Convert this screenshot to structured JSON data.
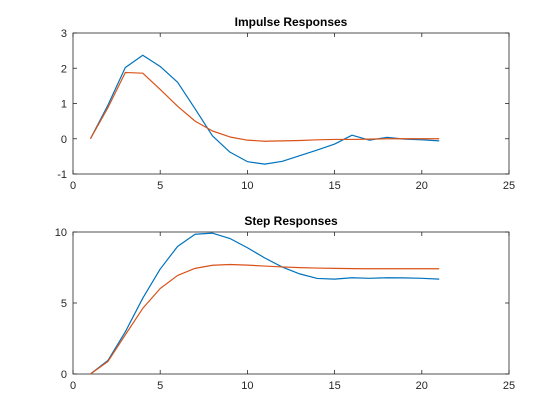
{
  "chart_data": [
    {
      "type": "line",
      "title": "Impulse Responses",
      "xlabel": "",
      "ylabel": "",
      "xlim": [
        0,
        25
      ],
      "ylim": [
        -1,
        3
      ],
      "xticks": [
        0,
        5,
        10,
        15,
        20,
        25
      ],
      "yticks": [
        -1,
        0,
        1,
        2,
        3
      ],
      "grid": false,
      "x": [
        1,
        2,
        3,
        4,
        5,
        6,
        7,
        8,
        9,
        10,
        11,
        12,
        13,
        14,
        15,
        16,
        17,
        18,
        19,
        20,
        21
      ],
      "series": [
        {
          "color": "#0072BD",
          "values": [
            0,
            0.95,
            2.02,
            2.37,
            2.05,
            1.6,
            0.85,
            0.08,
            -0.38,
            -0.65,
            -0.72,
            -0.64,
            -0.48,
            -0.32,
            -0.15,
            0.1,
            -0.04,
            0.04,
            -0.01,
            -0.03,
            -0.06
          ]
        },
        {
          "color": "#D95319",
          "values": [
            0,
            0.88,
            1.88,
            1.86,
            1.4,
            0.92,
            0.5,
            0.22,
            0.05,
            -0.04,
            -0.07,
            -0.06,
            -0.05,
            -0.03,
            -0.02,
            -0.02,
            -0.01,
            0,
            0,
            0,
            0
          ]
        }
      ]
    },
    {
      "type": "line",
      "title": "Step Responses",
      "xlabel": "",
      "ylabel": "",
      "xlim": [
        0,
        25
      ],
      "ylim": [
        0,
        10
      ],
      "xticks": [
        0,
        5,
        10,
        15,
        20,
        25
      ],
      "yticks": [
        0,
        5,
        10
      ],
      "grid": false,
      "x": [
        1,
        2,
        3,
        4,
        5,
        6,
        7,
        8,
        9,
        10,
        11,
        12,
        13,
        14,
        15,
        16,
        17,
        18,
        19,
        20,
        21
      ],
      "series": [
        {
          "color": "#0072BD",
          "values": [
            0,
            0.95,
            2.97,
            5.34,
            7.39,
            8.99,
            9.84,
            9.92,
            9.54,
            8.89,
            8.17,
            7.53,
            7.05,
            6.73,
            6.68,
            6.78,
            6.74,
            6.78,
            6.77,
            6.74,
            6.68
          ]
        },
        {
          "color": "#D95319",
          "values": [
            0,
            0.88,
            2.76,
            4.62,
            6.02,
            6.94,
            7.44,
            7.66,
            7.71,
            7.67,
            7.6,
            7.54,
            7.49,
            7.46,
            7.44,
            7.42,
            7.41,
            7.41,
            7.41,
            7.41,
            7.41
          ]
        }
      ]
    }
  ]
}
